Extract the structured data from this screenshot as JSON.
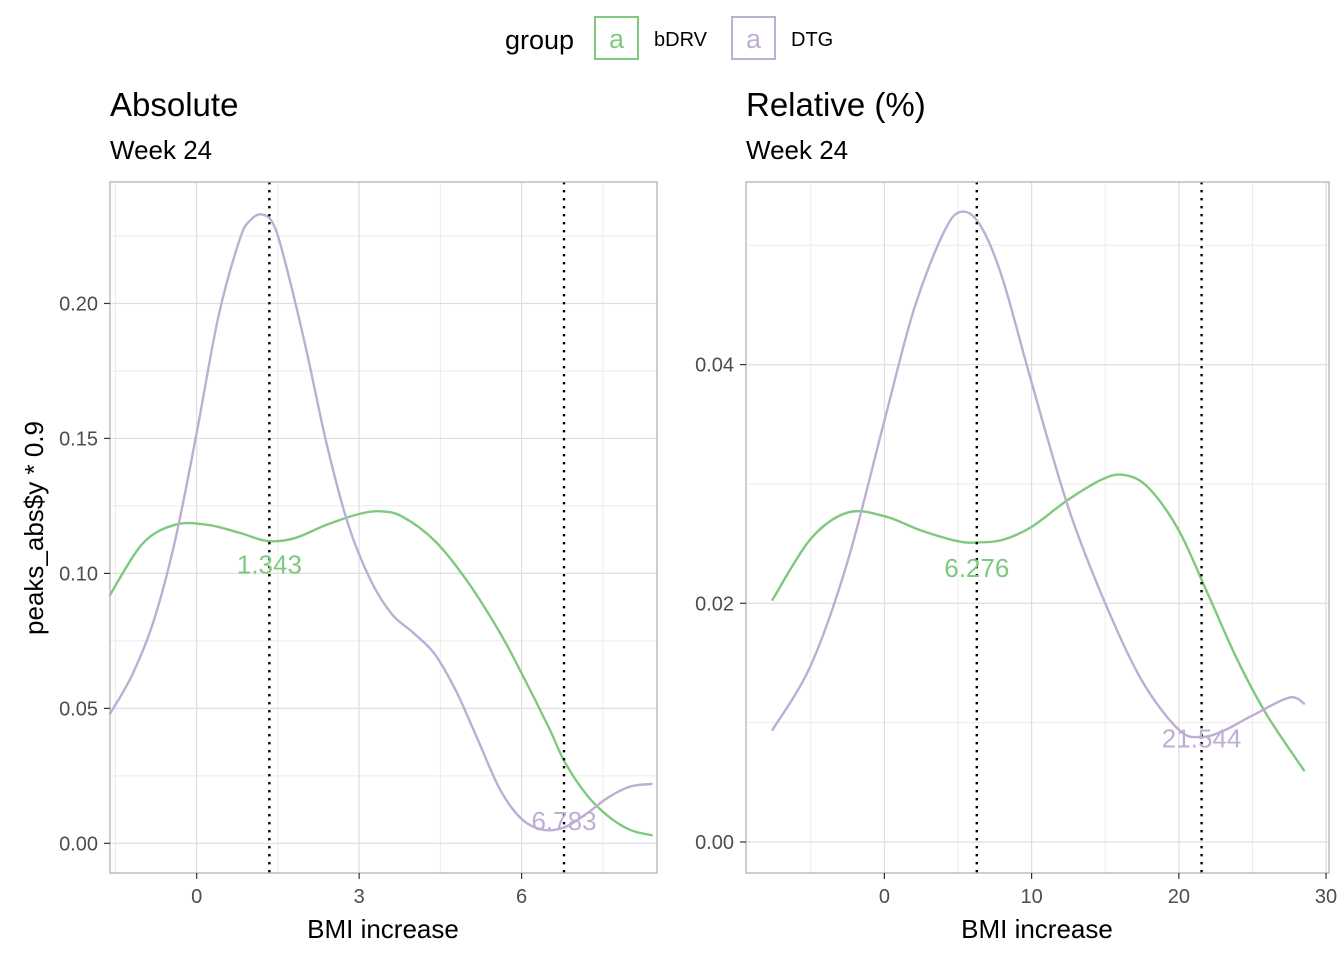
{
  "legend": {
    "title": "group",
    "key_glyph": "a",
    "items": [
      {
        "label": "bDRV",
        "color": "#7fc97f"
      },
      {
        "label": "DTG",
        "color": "#beaed4"
      }
    ]
  },
  "y_label": "peaks_abs$y * 0.9",
  "chart_data": [
    {
      "type": "line",
      "title": "Absolute",
      "subtitle": "Week 24",
      "xlabel": "BMI increase",
      "xlim": [
        -1.6,
        8.5
      ],
      "ylim": [
        -0.011,
        0.245
      ],
      "xticks": [
        0,
        3,
        6
      ],
      "yticks": [
        0.0,
        0.05,
        0.1,
        0.15,
        0.2
      ],
      "ytick_labels": [
        "0.00",
        "0.05",
        "0.10",
        "0.15",
        "0.20"
      ],
      "grid": true,
      "series": [
        {
          "name": "bDRV",
          "color": "#7fc97f",
          "x": [
            -1.6,
            -1.0,
            -0.4,
            0.2,
            0.8,
            1.3,
            1.8,
            2.4,
            3.0,
            3.4,
            3.8,
            4.4,
            5.0,
            5.6,
            6.0,
            6.5,
            6.8,
            7.2,
            7.6,
            8.0,
            8.4
          ],
          "y": [
            0.092,
            0.111,
            0.118,
            0.118,
            0.115,
            0.112,
            0.113,
            0.118,
            0.122,
            0.123,
            0.121,
            0.112,
            0.097,
            0.078,
            0.063,
            0.043,
            0.03,
            0.018,
            0.01,
            0.005,
            0.003
          ]
        },
        {
          "name": "DTG",
          "color": "#beaed4",
          "x": [
            -1.6,
            -1.2,
            -0.8,
            -0.4,
            0.0,
            0.4,
            0.8,
            1.0,
            1.2,
            1.4,
            1.6,
            2.0,
            2.4,
            2.8,
            3.2,
            3.6,
            4.0,
            4.4,
            4.8,
            5.2,
            5.6,
            6.0,
            6.4,
            6.8,
            7.2,
            7.6,
            8.0,
            8.4
          ],
          "y": [
            0.048,
            0.062,
            0.082,
            0.112,
            0.152,
            0.195,
            0.224,
            0.231,
            0.233,
            0.23,
            0.218,
            0.185,
            0.148,
            0.118,
            0.098,
            0.085,
            0.078,
            0.07,
            0.056,
            0.038,
            0.02,
            0.009,
            0.005,
            0.006,
            0.011,
            0.017,
            0.021,
            0.022
          ]
        }
      ],
      "vlines": [
        1.343,
        6.783
      ],
      "peak_labels": [
        {
          "text": "1.343",
          "x": 1.343,
          "y": 0.1,
          "color": "#7fc97f"
        },
        {
          "text": "6.783",
          "x": 6.783,
          "y": 0.005,
          "color": "#beaed4"
        }
      ]
    },
    {
      "type": "line",
      "title": "Relative (%)",
      "subtitle": "Week 24",
      "xlabel": "BMI increase",
      "xlim": [
        -9.4,
        30.2
      ],
      "ylim": [
        -0.0026,
        0.0553
      ],
      "xticks": [
        0,
        10,
        20,
        30
      ],
      "yticks": [
        0.0,
        0.02,
        0.04
      ],
      "ytick_labels": [
        "0.00",
        "0.02",
        "0.04"
      ],
      "grid": true,
      "series": [
        {
          "name": "bDRV",
          "color": "#7fc97f",
          "x": [
            -7.6,
            -5.0,
            -2.5,
            0.0,
            2.5,
            5.0,
            6.3,
            8.0,
            10.0,
            12.5,
            15.0,
            16.5,
            18.0,
            20.0,
            22.0,
            24.0,
            26.0,
            28.5
          ],
          "y": [
            0.0203,
            0.0254,
            0.0276,
            0.0273,
            0.0261,
            0.0252,
            0.0251,
            0.0253,
            0.0264,
            0.0287,
            0.0305,
            0.0307,
            0.0296,
            0.0261,
            0.0207,
            0.0152,
            0.0106,
            0.006
          ]
        },
        {
          "name": "DTG",
          "color": "#beaed4",
          "x": [
            -7.6,
            -5.0,
            -2.5,
            0.0,
            2.0,
            4.0,
            5.2,
            6.5,
            8.0,
            10.0,
            12.5,
            15.0,
            17.5,
            20.0,
            21.5,
            23.0,
            25.0,
            27.5,
            28.5
          ],
          "y": [
            0.0094,
            0.0148,
            0.0235,
            0.0353,
            0.0446,
            0.051,
            0.0528,
            0.0517,
            0.0473,
            0.0385,
            0.028,
            0.02,
            0.0135,
            0.0094,
            0.0088,
            0.0093,
            0.0106,
            0.0121,
            0.0116
          ]
        }
      ],
      "vlines": [
        6.276,
        21.544
      ],
      "peak_labels": [
        {
          "text": "6.276",
          "x": 6.276,
          "y": 0.0222,
          "color": "#7fc97f"
        },
        {
          "text": "21.544",
          "x": 21.544,
          "y": 0.0079,
          "color": "#beaed4"
        }
      ]
    }
  ]
}
